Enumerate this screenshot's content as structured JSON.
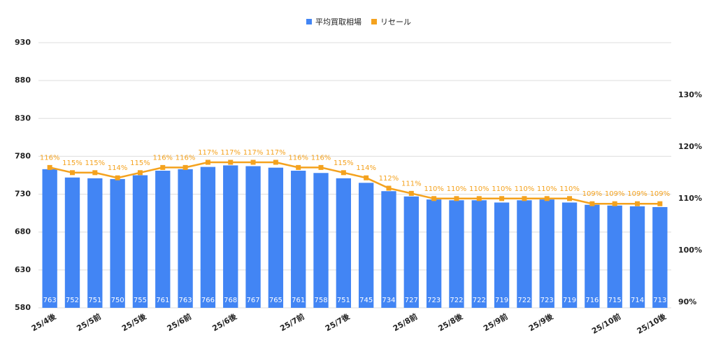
{
  "chart_data": {
    "type": "bar",
    "categories": [
      "25/4後",
      null,
      "25/5前",
      null,
      "25/5後",
      null,
      "25/6前",
      null,
      "25/6後",
      null,
      null,
      "25/7前",
      null,
      "25/7後",
      null,
      null,
      "25/8前",
      null,
      "25/8後",
      null,
      "25/9前",
      null,
      "25/9後",
      null,
      null,
      "25/10前",
      null,
      "25/10後"
    ],
    "series": [
      {
        "name": "平均買取相場",
        "type": "bar",
        "color": "#4285f4",
        "values": [
          763,
          752,
          751,
          750,
          755,
          761,
          763,
          766,
          768,
          767,
          765,
          761,
          758,
          751,
          745,
          734,
          727,
          723,
          722,
          722,
          719,
          722,
          723,
          719,
          716,
          715,
          714,
          713
        ]
      },
      {
        "name": "リセール",
        "type": "line",
        "axis": "y2",
        "color": "#f4a21e",
        "values": [
          116,
          115,
          115,
          114,
          115,
          116,
          116,
          117,
          117,
          117,
          117,
          116,
          116,
          115,
          114,
          112,
          111,
          110,
          110,
          110,
          110,
          110,
          110,
          110,
          109,
          109,
          109,
          109
        ],
        "value_labels": [
          "116%",
          "115%",
          "115%",
          "114%",
          "115%",
          "116%",
          "116%",
          "117%",
          "117%",
          "117%",
          "117%",
          "116%",
          "116%",
          "115%",
          "114%",
          "112%",
          "111%",
          "110%",
          "110%",
          "110%",
          "110%",
          "110%",
          "110%",
          "110%",
          "109%",
          "109%",
          "109%",
          "109%"
        ]
      }
    ],
    "ylim": [
      580,
      930
    ],
    "yticks": [
      580,
      630,
      680,
      730,
      780,
      830,
      880,
      930
    ],
    "y2lim": [
      88.9,
      140.1
    ],
    "y2ticks": [
      {
        "value": 90,
        "label": "90%"
      },
      {
        "value": 100,
        "label": "100%"
      },
      {
        "value": 110,
        "label": "110%"
      },
      {
        "value": 120,
        "label": "120%"
      },
      {
        "value": 130,
        "label": "130%"
      }
    ],
    "grid": true,
    "legend": "top"
  }
}
